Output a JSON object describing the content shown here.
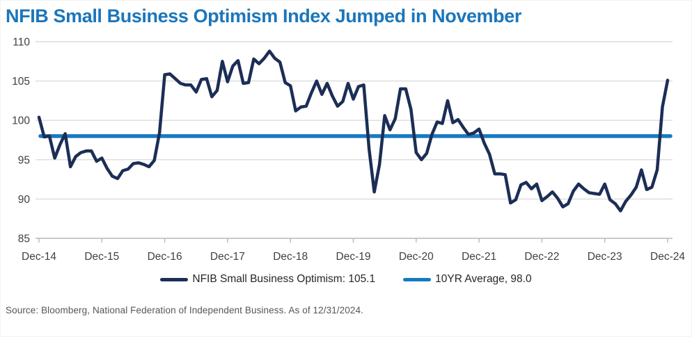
{
  "header": {
    "title": "NFIB Small Business Optimism Index Jumped in November"
  },
  "legend": {
    "items": [
      {
        "label": "NFIB Small Business Optimism: 105.1",
        "color": "#1c2e56"
      },
      {
        "label": "10YR Average, 98.0",
        "color": "#177ac0"
      }
    ]
  },
  "footer": {
    "source": "Source: Bloomberg, National Federation of Independent Business. As of 12/31/2024."
  },
  "colors": {
    "title": "#1b76bb",
    "nfib_line": "#1c2e56",
    "avg_line": "#177ac0",
    "gridline": "#dcdcdc",
    "axis": "#b7b7b7",
    "axis_text": "#404040"
  },
  "chart_data": {
    "type": "line",
    "title": "NFIB Small Business Optimism Index Jumped in November",
    "xlabel": "",
    "ylabel": "",
    "ylim": [
      85,
      110
    ],
    "ytick_step": 5,
    "grid": "horizontal",
    "legend_position": "bottom",
    "x_frequency": "monthly",
    "months_per_tick": 12,
    "x_tick_labels": [
      "Dec-14",
      "Dec-15",
      "Dec-16",
      "Dec-17",
      "Dec-18",
      "Dec-19",
      "Dec-20",
      "Dec-21",
      "Dec-22",
      "Dec-23",
      "Dec-24"
    ],
    "series": [
      {
        "name": "NFIB Small Business Optimism",
        "last_value": 105.1,
        "color": "#1c2e56",
        "values": [
          100.4,
          97.9,
          98.0,
          95.2,
          96.9,
          98.3,
          94.1,
          95.4,
          95.9,
          96.1,
          96.1,
          94.8,
          95.2,
          93.9,
          92.9,
          92.6,
          93.6,
          93.8,
          94.5,
          94.6,
          94.4,
          94.1,
          94.9,
          98.4,
          105.8,
          105.9,
          105.3,
          104.7,
          104.5,
          104.5,
          103.6,
          105.2,
          105.3,
          103.0,
          103.8,
          107.5,
          104.9,
          106.9,
          107.6,
          104.7,
          104.8,
          107.8,
          107.2,
          107.9,
          108.8,
          107.9,
          107.4,
          104.8,
          104.4,
          101.2,
          101.7,
          101.8,
          103.5,
          105.0,
          103.3,
          104.7,
          103.1,
          101.8,
          102.4,
          104.7,
          102.7,
          104.3,
          104.5,
          96.4,
          90.9,
          94.4,
          100.6,
          98.8,
          100.2,
          104.0,
          104.0,
          101.4,
          95.9,
          95.0,
          95.8,
          98.2,
          99.8,
          99.6,
          102.5,
          99.7,
          100.1,
          99.1,
          98.2,
          98.4,
          98.9,
          97.1,
          95.7,
          93.2,
          93.2,
          93.1,
          89.5,
          89.9,
          91.8,
          92.1,
          91.3,
          91.9,
          89.8,
          90.3,
          90.9,
          90.1,
          89.0,
          89.4,
          91.0,
          91.9,
          91.3,
          90.8,
          90.7,
          90.6,
          91.9,
          89.9,
          89.4,
          88.5,
          89.7,
          90.5,
          91.5,
          93.7,
          91.2,
          91.5,
          93.7,
          101.7,
          105.1
        ]
      },
      {
        "name": "10YR Average",
        "constant": 98.0,
        "color": "#177ac0"
      }
    ]
  }
}
